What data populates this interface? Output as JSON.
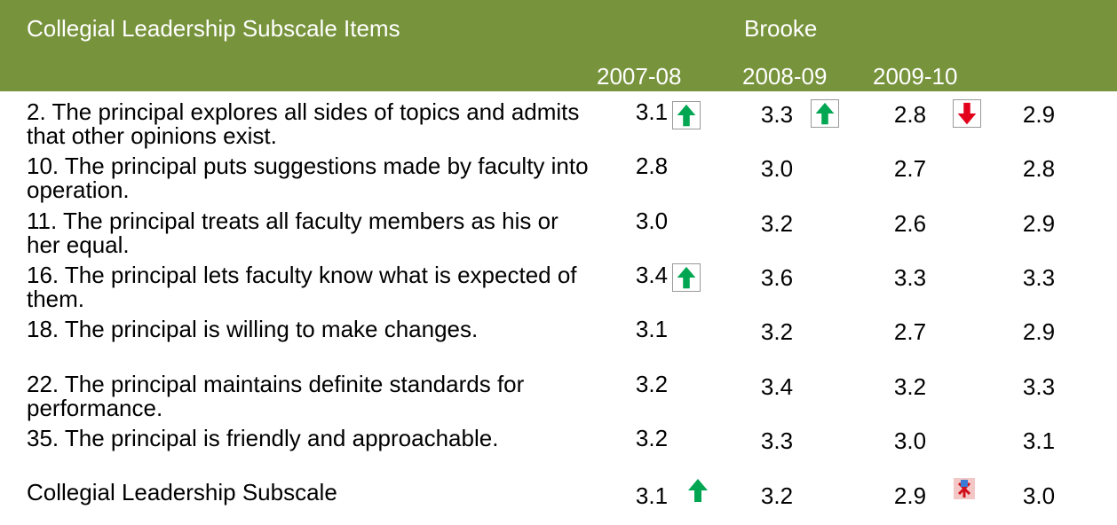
{
  "header": {
    "title": "Collegial Leadership Subscale Items",
    "group": "Brooke",
    "years": [
      "2007-08",
      "2008-09",
      "2009-10"
    ]
  },
  "table": {
    "rows": [
      [
        "2. The principal explores all sides of topics and admits that other opinions exist.",
        "3.1",
        "3.3",
        "2.8",
        "2.9"
      ],
      [
        "10. The principal puts suggestions made by faculty into operation.",
        "2.8",
        "3.0",
        "2.7",
        "2.8"
      ],
      [
        "11. The principal treats all faculty members as his or her equal.",
        "3.0",
        "3.2",
        "2.6",
        "2.9"
      ],
      [
        "16. The principal lets faculty know what is expected of them.",
        "3.4",
        "3.6",
        "3.3",
        "3.3"
      ],
      [
        "18. The principal is willing to make changes.",
        "3.1",
        "3.2",
        "2.7",
        "2.9"
      ],
      [
        "22. The principal maintains definite standards for performance.",
        "3.2",
        "3.4",
        "3.2",
        "3.3"
      ],
      [
        "35. The principal is friendly and approachable.",
        "3.2",
        "3.3",
        "3.0",
        "3.1"
      ],
      [
        "Collegial Leadership Subscale",
        "3.1",
        "3.2",
        "2.9",
        "3.0"
      ]
    ]
  }
}
